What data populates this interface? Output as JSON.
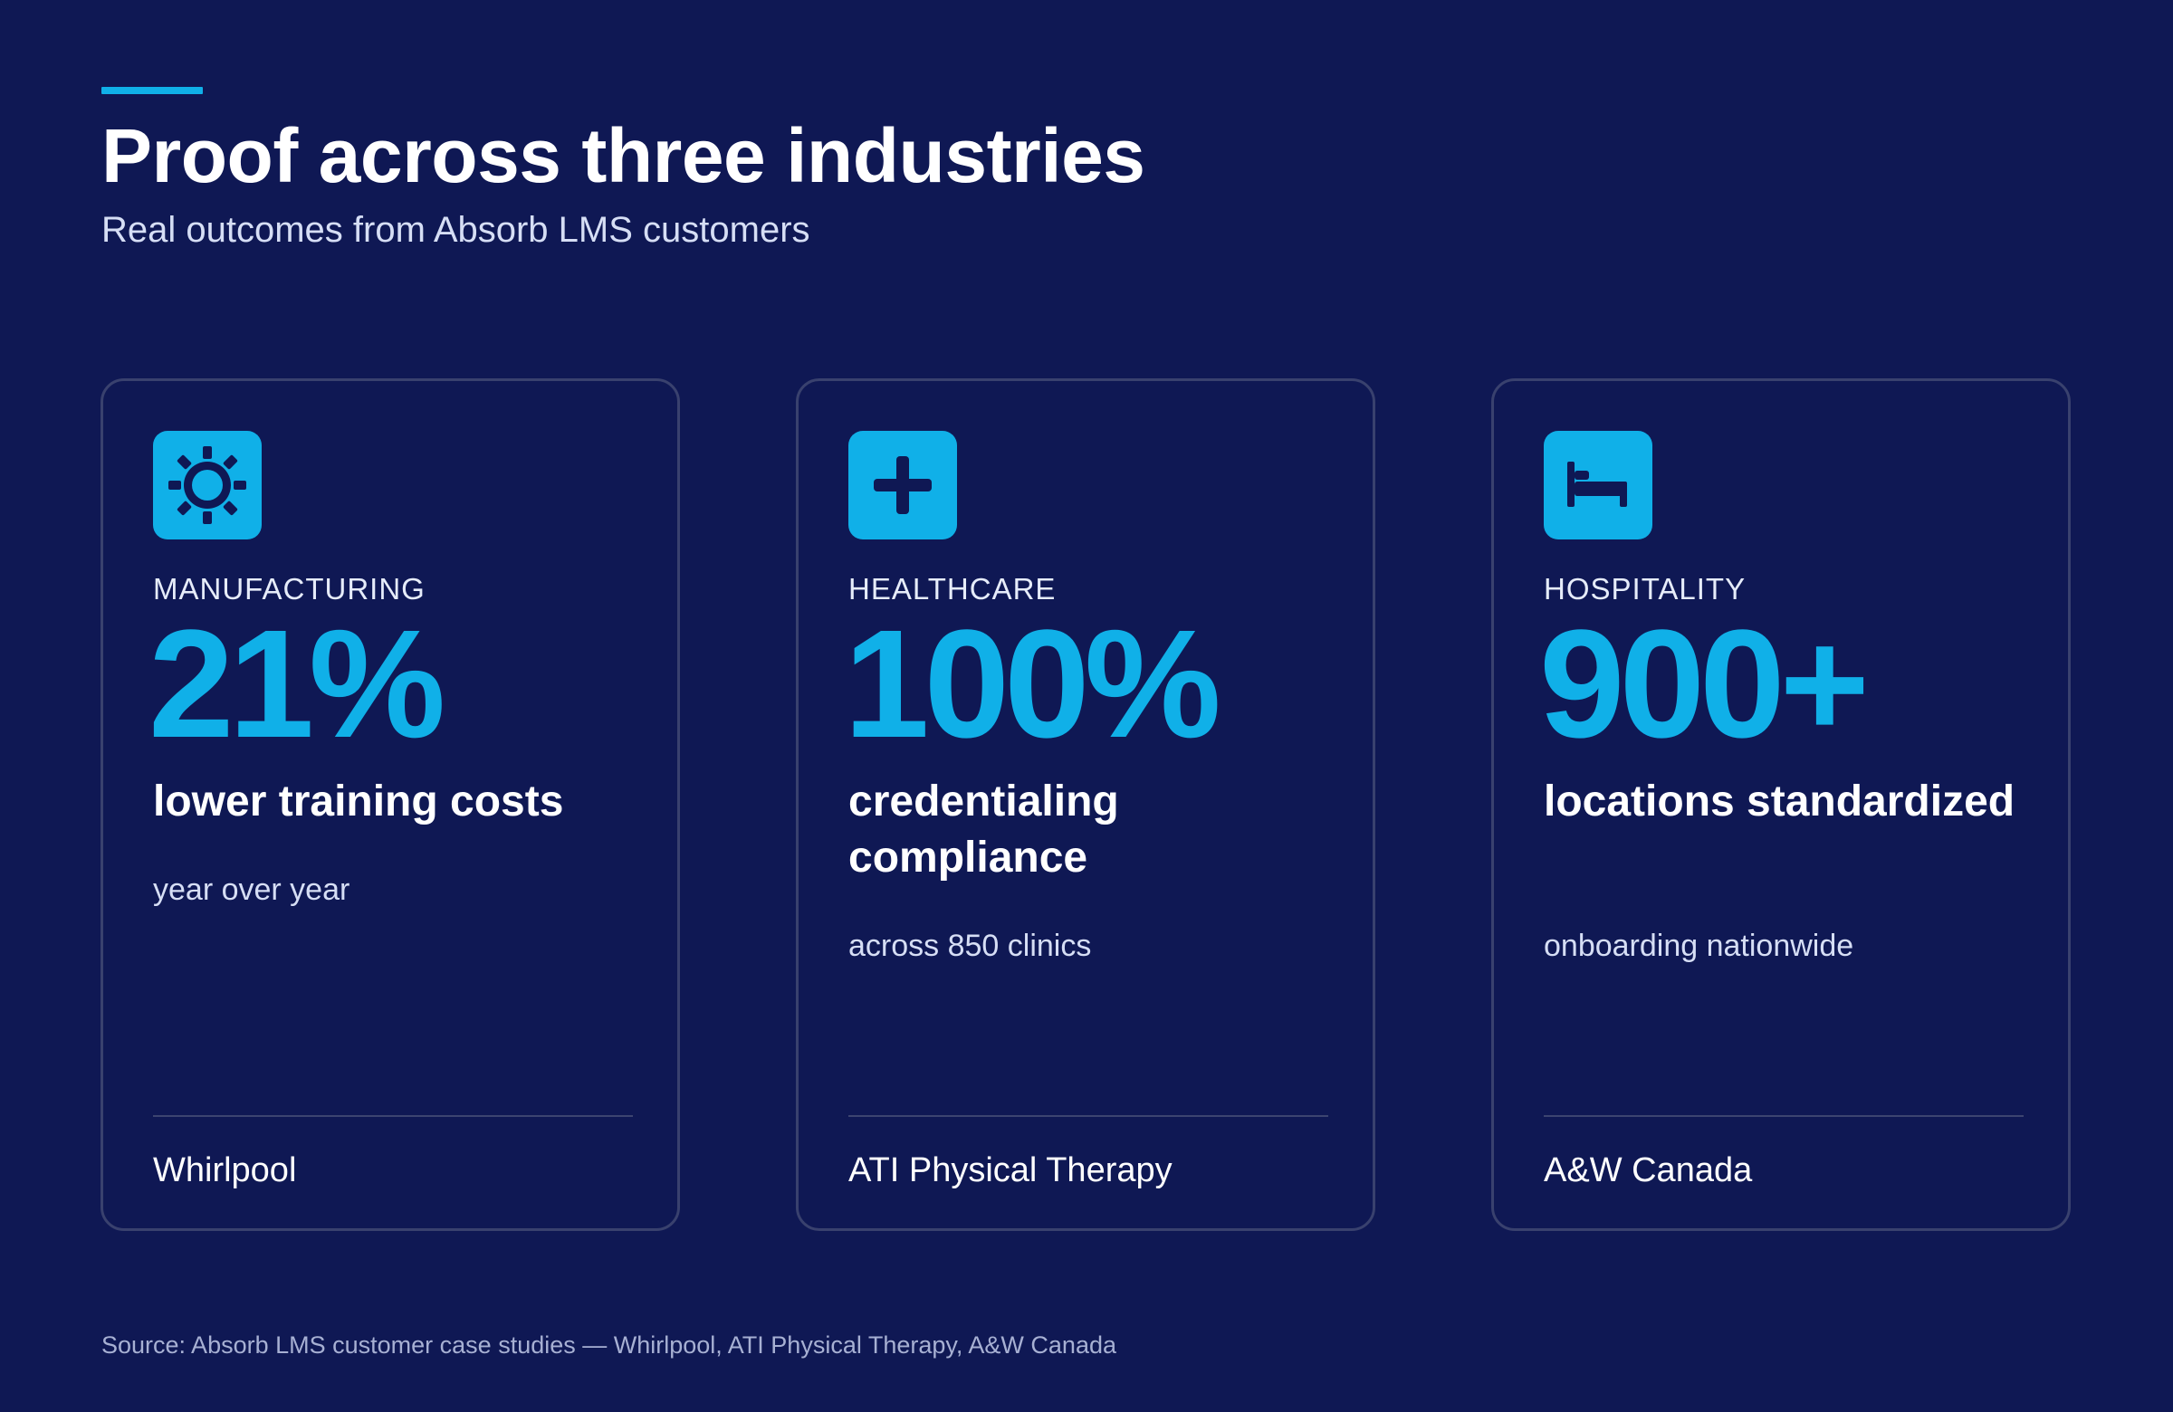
{
  "header": {
    "title": "Proof across three industries",
    "subtitle": "Real outcomes from Absorb LMS customers"
  },
  "colors": {
    "background": "#0f1854",
    "accent": "#10b0e8",
    "card_border": "#39416e"
  },
  "cards": [
    {
      "icon": "gear-icon",
      "industry": "MANUFACTURING",
      "stat": "21%",
      "headline": "lower training costs",
      "detail": "year over year",
      "company": "Whirlpool"
    },
    {
      "icon": "plus-icon",
      "industry": "HEALTHCARE",
      "stat": "100%",
      "headline": "credentialing compliance",
      "detail": "across 850 clinics",
      "company": "ATI Physical Therapy"
    },
    {
      "icon": "bed-icon",
      "industry": "HOSPITALITY",
      "stat": "900+",
      "headline": "locations standardized",
      "detail": "onboarding nationwide",
      "company": "A&W Canada"
    }
  ],
  "footer": {
    "source": "Source: Absorb LMS customer case studies — Whirlpool, ATI Physical Therapy, A&W Canada"
  }
}
